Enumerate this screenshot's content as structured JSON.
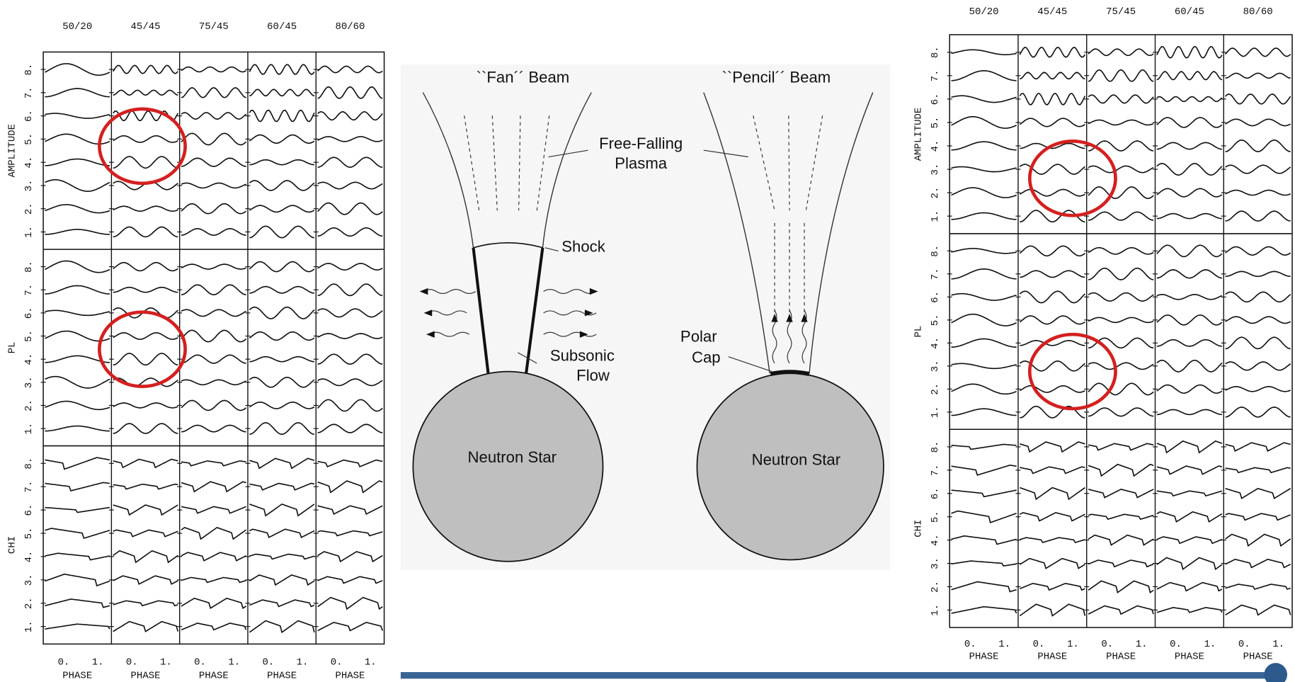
{
  "left_panel": {
    "columns": [
      "50/20",
      "45/45",
      "75/45",
      "60/45",
      "80/60"
    ],
    "sections": [
      {
        "label": "AMPLITUDE",
        "rows": [
          "1.",
          "2.",
          "3.",
          "4.",
          "5.",
          "6.",
          "7.",
          "8."
        ]
      },
      {
        "label": "PL",
        "rows": [
          "1.",
          "2.",
          "3.",
          "4.",
          "5.",
          "6.",
          "7.",
          "8."
        ]
      },
      {
        "label": "CHI",
        "rows": [
          "1.",
          "2.",
          "3.",
          "4.",
          "5.",
          "6.",
          "7.",
          "8."
        ]
      }
    ],
    "phase_ticks": [
      "0.",
      "1."
    ],
    "phase_label": "PHASE"
  },
  "right_panel": {
    "columns": [
      "50/20",
      "45/45",
      "75/45",
      "60/45",
      "80/60"
    ],
    "sections": [
      {
        "label": "AMPLITUDE",
        "rows": [
          "1.",
          "2.",
          "3.",
          "4.",
          "5.",
          "6.",
          "7.",
          "8."
        ]
      },
      {
        "label": "PL",
        "rows": [
          "1.",
          "2.",
          "3.",
          "4.",
          "5.",
          "6.",
          "7.",
          "8."
        ]
      },
      {
        "label": "CHI",
        "rows": [
          "1.",
          "2.",
          "3.",
          "4.",
          "5.",
          "6.",
          "7.",
          "8."
        ]
      }
    ],
    "phase_ticks": [
      "0.",
      "1."
    ],
    "phase_label": "PHASE"
  },
  "diagram": {
    "fan_title": "``Fan´´ Beam",
    "pencil_title": "``Pencil´´ Beam",
    "plasma_label": [
      "Free-Falling",
      "Plasma"
    ],
    "shock_label": "Shock",
    "subsonic_label": [
      "Subsonic",
      "Flow"
    ],
    "polar_cap_label": [
      "Polar",
      "Cap"
    ],
    "star_label_fan": "Neutron Star",
    "star_label_pencil": "Neutron Star"
  }
}
